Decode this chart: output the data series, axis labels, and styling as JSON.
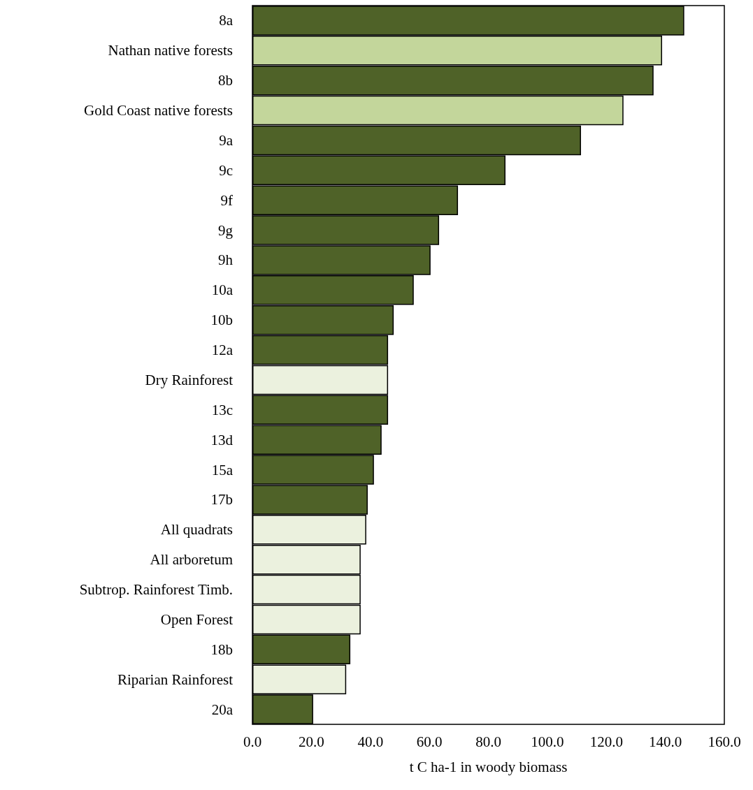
{
  "chart_data": {
    "type": "bar",
    "orientation": "horizontal",
    "xlabel": "t C ha-1 in woody biomass",
    "categories": [
      "8a",
      "Nathan native forests",
      "8b",
      "Gold Coast native forests",
      "9a",
      "9c",
      "9f",
      "9g",
      "9h",
      "10a",
      "10b",
      "12a",
      "Dry Rainforest",
      "13c",
      "13d",
      "15a",
      "17b",
      "All quadrats",
      "All arboretum",
      "Subtrop. Rainforest Timb.",
      "Open Forest",
      "18b",
      "Riparian Rainforest",
      "20a"
    ],
    "values": [
      146.4,
      138.9,
      136.0,
      125.8,
      111.4,
      85.8,
      69.7,
      63.3,
      60.4,
      54.7,
      47.9,
      46.0,
      46.0,
      46.0,
      43.8,
      41.2,
      39.1,
      38.6,
      36.7,
      36.7,
      36.7,
      33.2,
      31.8,
      20.6
    ],
    "colors": [
      "#4f6228",
      "#c3d69b",
      "#4f6228",
      "#c3d69b",
      "#4f6228",
      "#4f6228",
      "#4f6228",
      "#4f6228",
      "#4f6228",
      "#4f6228",
      "#4f6228",
      "#4f6228",
      "#ebf1de",
      "#4f6228",
      "#4f6228",
      "#4f6228",
      "#4f6228",
      "#ebf1de",
      "#ebf1de",
      "#ebf1de",
      "#ebf1de",
      "#4f6228",
      "#ebf1de",
      "#4f6228"
    ],
    "xlim": [
      0,
      160
    ],
    "xticks": [
      {
        "value": 0,
        "label": "0.0"
      },
      {
        "value": 20,
        "label": "20.0"
      },
      {
        "value": 40,
        "label": "40.0"
      },
      {
        "value": 60,
        "label": "60.0"
      },
      {
        "value": 80,
        "label": "80.0"
      },
      {
        "value": 100,
        "label": "100.0"
      },
      {
        "value": 120,
        "label": "120.0"
      },
      {
        "value": 140,
        "label": "140.0"
      },
      {
        "value": 160,
        "label": "160.0"
      }
    ],
    "grid": false
  }
}
